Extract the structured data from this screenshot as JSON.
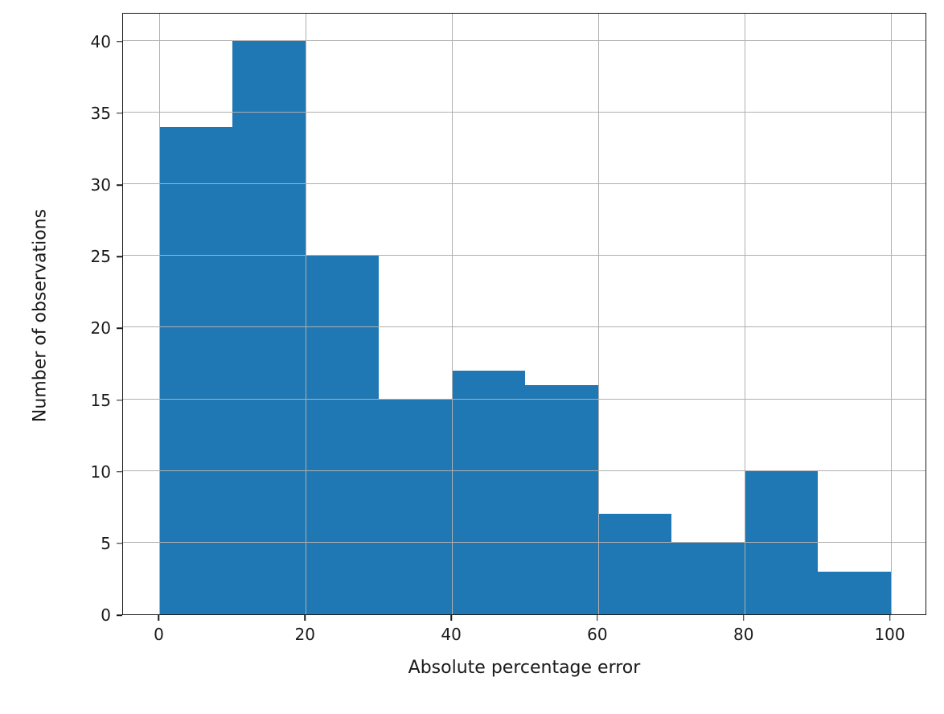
{
  "chart_data": {
    "type": "bar",
    "subtype": "histogram",
    "title": "",
    "xlabel": "Absolute percentage error",
    "ylabel": "Number of observations",
    "bin_edges": [
      0,
      10,
      20,
      30,
      40,
      50,
      60,
      70,
      80,
      90,
      100
    ],
    "counts": [
      34,
      40,
      25,
      15,
      17,
      16,
      7,
      5,
      10,
      3
    ],
    "xlim": [
      -5,
      105
    ],
    "ylim": [
      0,
      42
    ],
    "xticks": [
      0,
      20,
      40,
      60,
      80,
      100
    ],
    "yticks": [
      0,
      5,
      10,
      15,
      20,
      25,
      30,
      35,
      40
    ],
    "bar_color": "#1f77b4",
    "grid": true,
    "grid_color": "#b0b0b0",
    "frame_color": "#1a1a1a",
    "legend_position": "none"
  }
}
